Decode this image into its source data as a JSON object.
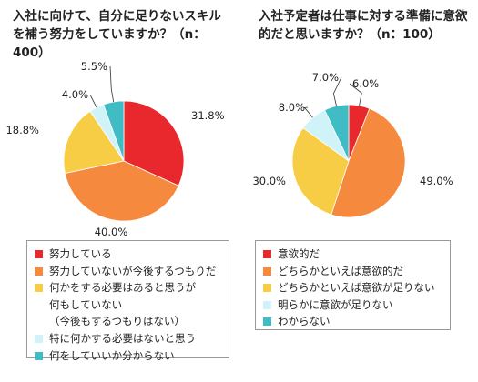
{
  "chart_data": [
    {
      "type": "pie",
      "title": "入社に向けて、自分に足りないスキル\nを補う努力をしていますか？（n：\n400）",
      "start": "12 o'clock, clockwise",
      "slices": [
        {
          "label": "努力している",
          "value": 31.8,
          "value_label": "31.8%",
          "color": "#e8282c"
        },
        {
          "label": "努力していないが今後するつもりだ",
          "value": 40.0,
          "value_label": "40.0%",
          "color": "#f58a3e"
        },
        {
          "label": "何かをする必要はあると思うが\n何もしていない\n（今後もするつもりはない）",
          "value": 18.8,
          "value_label": "18.8%",
          "color": "#f8cd46"
        },
        {
          "label": "特に何かする必要はないと思う",
          "value": 4.0,
          "value_label": "4.0%",
          "color": "#cff3f8"
        },
        {
          "label": "何をしていいか分からない",
          "value": 5.5,
          "value_label": "5.5%",
          "color": "#40bcc4"
        }
      ],
      "legend": "bottom"
    },
    {
      "type": "pie",
      "title": "入社予定者は仕事に対する準備に意欲\n的だと思いますか？（n：100）",
      "start": "12 o'clock, clockwise",
      "slices": [
        {
          "label": "意欲的だ",
          "value": 6.0,
          "value_label": "6.0%",
          "color": "#e8282c"
        },
        {
          "label": "どちらかといえば意欲的だ",
          "value": 49.0,
          "value_label": "49.0%",
          "color": "#f58a3e"
        },
        {
          "label": "どちらかといえば意欲が足りない",
          "value": 30.0,
          "value_label": "30.0%",
          "color": "#f8cd46"
        },
        {
          "label": "明らかに意欲が足りない",
          "value": 8.0,
          "value_label": "8.0%",
          "color": "#cff3f8"
        },
        {
          "label": "わからない",
          "value": 7.0,
          "value_label": "7.0%",
          "color": "#40bcc4"
        }
      ],
      "legend": "bottom"
    }
  ]
}
